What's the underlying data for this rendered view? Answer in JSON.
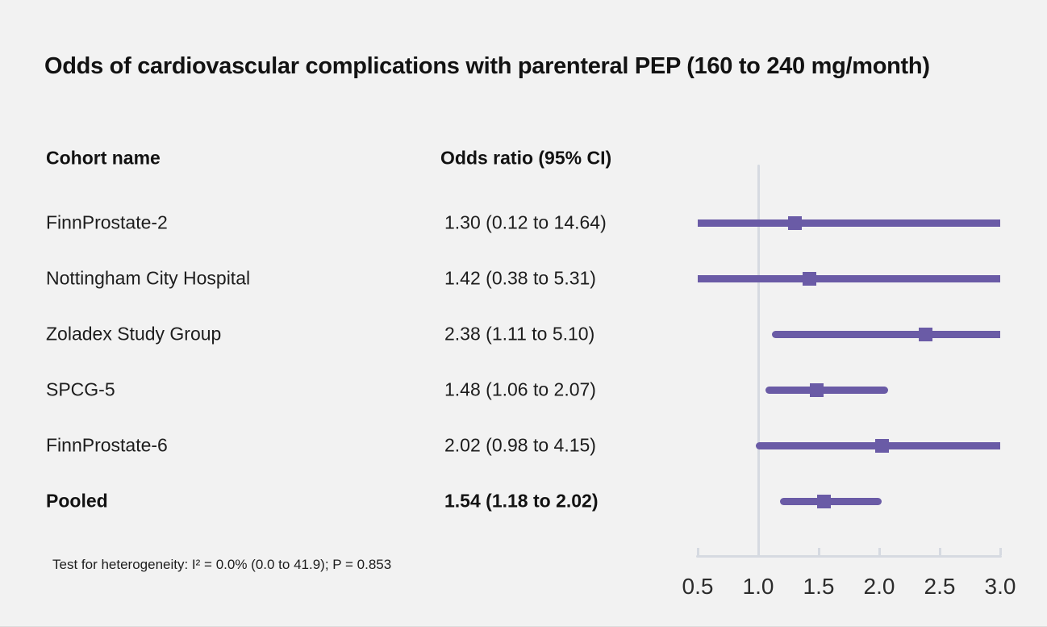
{
  "title": "Odds of cardiovascular complications with parenteral PEP (160 to 240 mg/month)",
  "table": {
    "cohort_header": "Cohort name",
    "odds_header": "Odds ratio (95% CI)"
  },
  "footnote": "Test for heterogeneity: I² = 0.0% (0.0 to 41.9); P = 0.853",
  "chart_data": {
    "type": "forest",
    "title": "Odds of cardiovascular complications with parenteral PEP (160 to 240 mg/month)",
    "xlabel": "Odds ratio",
    "rows": [
      {
        "label": "FinnProstate-2",
        "display": "1.30 (0.12 to 14.64)",
        "or": 1.3,
        "ci_low": 0.12,
        "ci_high": 14.64,
        "pooled": false
      },
      {
        "label": "Nottingham City Hospital",
        "display": "1.42 (0.38 to 5.31)",
        "or": 1.42,
        "ci_low": 0.38,
        "ci_high": 5.31,
        "pooled": false
      },
      {
        "label": "Zoladex Study Group",
        "display": "2.38 (1.11 to 5.10)",
        "or": 2.38,
        "ci_low": 1.11,
        "ci_high": 5.1,
        "pooled": false
      },
      {
        "label": "SPCG-5",
        "display": "1.48 (1.06 to 2.07)",
        "or": 1.48,
        "ci_low": 1.06,
        "ci_high": 2.07,
        "pooled": false
      },
      {
        "label": "FinnProstate-6",
        "display": "2.02 (0.98 to 4.15)",
        "or": 2.02,
        "ci_low": 0.98,
        "ci_high": 4.15,
        "pooled": false
      },
      {
        "label": "Pooled",
        "display": "1.54 (1.18 to 2.02)",
        "or": 1.54,
        "ci_low": 1.18,
        "ci_high": 2.02,
        "pooled": true
      }
    ],
    "axis": {
      "min": 0.5,
      "max": 3.0,
      "ticks": [
        0.5,
        1.0,
        1.5,
        2.0,
        2.5,
        3.0
      ],
      "tick_labels": [
        "0.5",
        "1.0",
        "1.5",
        "2.0",
        "2.5",
        "3.0"
      ],
      "reference_line": 1.0,
      "scale": "linear",
      "grid": false
    },
    "colors": {
      "series": "#6a5ba6",
      "axis": "#d6dae1",
      "background": "#f2f2f2",
      "text": "#1d1d1d"
    }
  }
}
